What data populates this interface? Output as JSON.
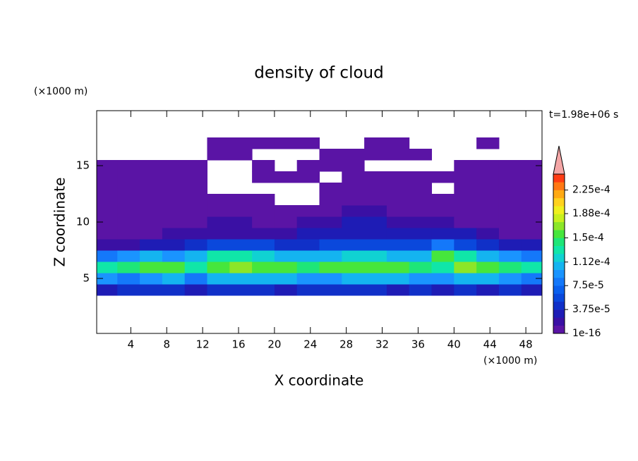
{
  "chart_data": {
    "type": "contour",
    "title": "density of cloud",
    "time_label": "t=1.98e+06 s",
    "x_unit": "(×1000 m)",
    "y_unit": "(×1000 m)",
    "xlabel": "X coordinate",
    "ylabel": "Z coordinate",
    "xlim": [
      0.2,
      49.8
    ],
    "ylim": [
      0.125,
      19.875
    ],
    "xticks": [
      4,
      8,
      12,
      16,
      20,
      24,
      28,
      32,
      36,
      40,
      44,
      48
    ],
    "yticks": [
      5,
      10,
      15
    ],
    "x": [
      1.25,
      3.75,
      6.25,
      8.75,
      11.25,
      13.75,
      16.25,
      18.75,
      21.25,
      23.75,
      26.25,
      28.75,
      31.25,
      33.75,
      36.25,
      38.75,
      41.25,
      43.75,
      46.25,
      48.75
    ],
    "y": [
      4,
      5,
      6,
      7,
      8,
      9,
      10,
      11,
      12,
      13,
      14,
      15,
      16,
      17
    ],
    "z": [
      [
        3e-05,
        4e-05,
        4e-05,
        4e-05,
        3e-05,
        4e-05,
        4e-05,
        4e-05,
        3e-05,
        4e-05,
        4e-05,
        4e-05,
        4e-05,
        3e-05,
        4e-05,
        3e-05,
        4e-05,
        3e-05,
        4e-05,
        3e-05
      ],
      [
        9e-05,
        8e-05,
        9e-05,
        0.0001,
        8e-05,
        0.0001,
        0.00011,
        0.00011,
        0.0001,
        9e-05,
        9e-05,
        0.0001,
        0.00011,
        0.0001,
        9e-05,
        9e-05,
        0.0001,
        0.0001,
        9e-05,
        8e-05
      ],
      [
        0.00013,
        0.00014,
        0.00016,
        0.00015,
        0.00013,
        0.00016,
        0.00017,
        0.00016,
        0.00015,
        0.00014,
        0.00015,
        0.00016,
        0.00016,
        0.00015,
        0.00014,
        0.00013,
        0.00017,
        0.00016,
        0.00014,
        0.00013
      ],
      [
        8e-05,
        9e-05,
        0.0001,
        9e-05,
        0.00011,
        0.00013,
        0.00013,
        0.00012,
        0.00011,
        0.0001,
        0.00011,
        0.00012,
        0.00012,
        0.00011,
        0.0001,
        0.00015,
        0.00013,
        0.00011,
        9e-05,
        8e-05
      ],
      [
        2e-05,
        2e-05,
        2.5e-05,
        3e-05,
        4e-05,
        5e-05,
        5e-05,
        5e-05,
        4e-05,
        4e-05,
        5e-05,
        6e-05,
        6e-05,
        5e-05,
        5e-05,
        8e-05,
        5e-05,
        4e-05,
        3e-05,
        2.5e-05
      ],
      [
        1e-05,
        1e-05,
        1.2e-05,
        1.5e-05,
        2e-05,
        2e-05,
        2e-05,
        2e-05,
        2e-05,
        2.5e-05,
        3e-05,
        3.5e-05,
        3.5e-05,
        3e-05,
        3e-05,
        3.5e-05,
        2.5e-05,
        1.5e-05,
        1.2e-05,
        1e-05
      ],
      [
        6e-06,
        6e-06,
        8e-06,
        1e-05,
        1.2e-05,
        1.5e-05,
        1.5e-05,
        1.2e-05,
        1.2e-05,
        1.5e-05,
        2e-05,
        2.5e-05,
        2.5e-05,
        2e-05,
        1.5e-05,
        1.5e-05,
        1.2e-05,
        8e-06,
        8e-06,
        6e-06
      ],
      [
        4e-06,
        4e-06,
        5e-06,
        6e-06,
        8e-06,
        1e-05,
        1e-05,
        8e-06,
        6e-06,
        8e-06,
        1.2e-05,
        1.5e-05,
        1.4e-05,
        1.2e-05,
        1e-05,
        1e-05,
        8e-06,
        6e-06,
        5e-06,
        4e-06
      ],
      [
        3e-06,
        3e-06,
        3e-06,
        4e-06,
        5e-06,
        6e-06,
        6e-06,
        5e-06,
        null,
        null,
        6e-06,
        8e-06,
        8e-06,
        6e-06,
        5e-06,
        5e-06,
        4e-06,
        3e-06,
        3e-06,
        3e-06
      ],
      [
        2e-06,
        2e-06,
        2e-06,
        2e-06,
        3e-06,
        null,
        null,
        null,
        null,
        null,
        3e-06,
        4e-06,
        4e-06,
        3e-06,
        3e-06,
        null,
        3e-06,
        2e-06,
        2e-06,
        2e-06
      ],
      [
        2e-06,
        2e-06,
        2e-06,
        2e-06,
        2e-06,
        null,
        null,
        2e-06,
        2e-06,
        2e-06,
        null,
        2e-06,
        2e-06,
        2e-06,
        2e-06,
        2e-06,
        2e-06,
        2e-06,
        2e-06,
        2e-06
      ],
      [
        2e-06,
        2e-06,
        2e-06,
        2e-06,
        2e-06,
        null,
        null,
        2e-06,
        null,
        2e-06,
        2e-06,
        2e-06,
        null,
        null,
        null,
        null,
        2e-06,
        2e-06,
        2e-06,
        2e-06
      ],
      [
        null,
        null,
        null,
        null,
        null,
        2e-06,
        2e-06,
        null,
        null,
        null,
        2e-06,
        2e-06,
        2e-06,
        2e-06,
        2e-06,
        null,
        null,
        null,
        null,
        null
      ],
      [
        null,
        null,
        null,
        null,
        null,
        2e-06,
        2e-06,
        2e-06,
        2e-06,
        2e-06,
        null,
        null,
        2e-06,
        2e-06,
        null,
        null,
        null,
        2e-06,
        null,
        null
      ]
    ],
    "levels": [
      1e-16,
      1.25e-05,
      2.5e-05,
      3.75e-05,
      5e-05,
      6.25e-05,
      7.5e-05,
      8.75e-05,
      0.0001,
      0.0001125,
      0.000125,
      0.0001375,
      0.00015,
      0.0001625,
      0.000175,
      0.0001875,
      0.0002,
      0.0002125,
      0.000225,
      0.0002375,
      0.00025
    ],
    "colors": [
      "#5a14a5",
      "#3a10a4",
      "#1e1cb5",
      "#1030c8",
      "#0a48dc",
      "#0a60ee",
      "#1478fa",
      "#1a94ff",
      "#14b4f0",
      "#10d2d2",
      "#10e6a8",
      "#1ee678",
      "#46e63c",
      "#8ce628",
      "#c8f01e",
      "#f0f01e",
      "#ffd21e",
      "#ffaa14",
      "#ff7814",
      "#ff3c14"
    ],
    "extend_color": "#f4a6a6",
    "colorbar_ticks": [
      1e-16,
      {
        "value": 3.75e-05,
        "label": "3.75e-5"
      },
      {
        "value": 7.5e-05,
        "label": "7.5e-5"
      },
      {
        "value": 0.000112,
        "label": "1.12e-4"
      },
      {
        "value": 0.00015,
        "label": "1.5e-4"
      },
      {
        "value": 0.000188,
        "label": "1.88e-4"
      },
      {
        "value": 0.000225,
        "label": "2.25e-4"
      }
    ]
  }
}
